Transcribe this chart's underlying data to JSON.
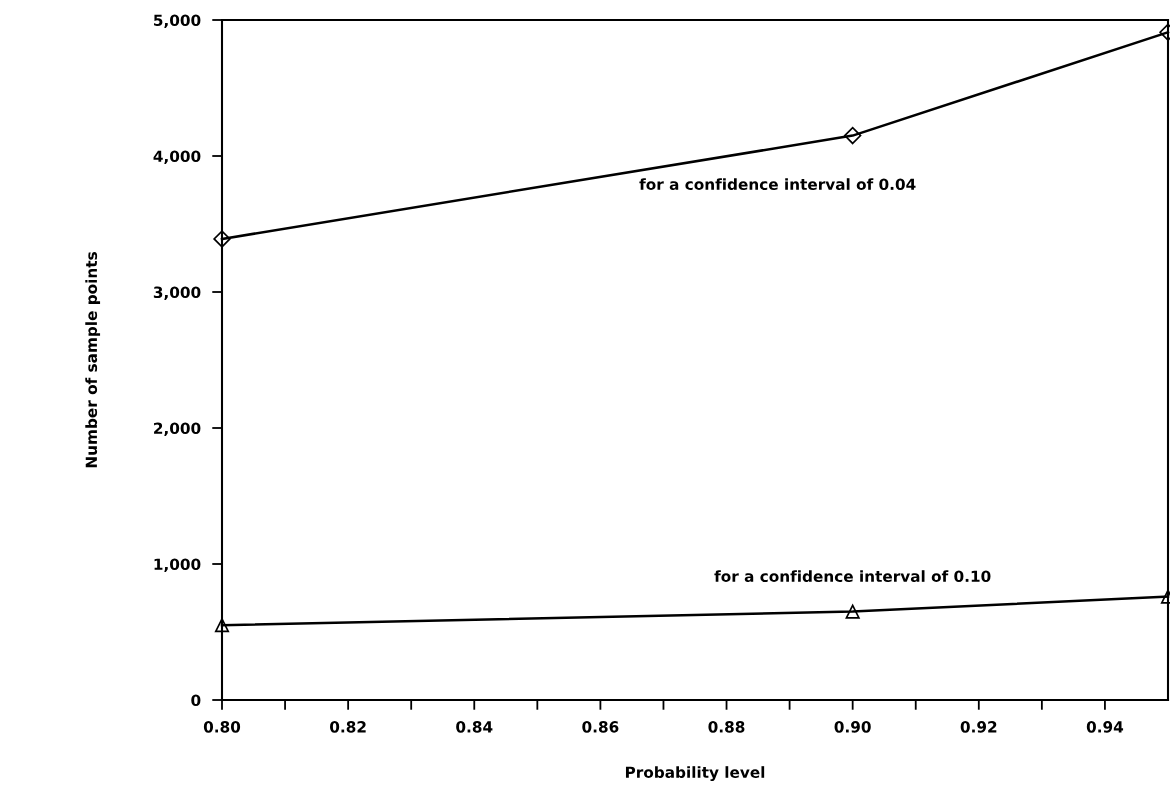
{
  "chart_data": {
    "type": "line",
    "xlabel": "Probability level",
    "ylabel": "Number of sample points",
    "x": [
      0.8,
      0.9,
      0.95
    ],
    "series": [
      {
        "name": "for a confidence interval of 0.04",
        "color": "#000000",
        "marker": "diamond",
        "values": [
          3390,
          4150,
          4910
        ]
      },
      {
        "name": "for a confidence interval of 0.10",
        "color": "#000000",
        "marker": "triangle",
        "values": [
          550,
          650,
          760
        ]
      }
    ],
    "xlim": [
      0.8,
      0.95
    ],
    "xticks": [
      {
        "value": 0.8,
        "label": "0.80"
      },
      {
        "value": 0.81,
        "label": null
      },
      {
        "value": 0.82,
        "label": "0.82"
      },
      {
        "value": 0.83,
        "label": null
      },
      {
        "value": 0.84,
        "label": "0.84"
      },
      {
        "value": 0.85,
        "label": null
      },
      {
        "value": 0.86,
        "label": "0.86"
      },
      {
        "value": 0.87,
        "label": null
      },
      {
        "value": 0.88,
        "label": "0.88"
      },
      {
        "value": 0.89,
        "label": null
      },
      {
        "value": 0.9,
        "label": "0.90"
      },
      {
        "value": 0.91,
        "label": null
      },
      {
        "value": 0.92,
        "label": "0.92"
      },
      {
        "value": 0.93,
        "label": null
      },
      {
        "value": 0.94,
        "label": "0.94"
      }
    ],
    "ylim": [
      0,
      5000
    ],
    "yticks": [
      0,
      {
        "value": 1000,
        "label": "1,000"
      },
      {
        "value": 2000,
        "label": "2,000"
      },
      {
        "value": 3000,
        "label": "3,000"
      },
      {
        "value": 4000,
        "label": "4,000"
      },
      {
        "value": 5000,
        "label": "5,000"
      }
    ],
    "grid": false,
    "legend": false
  }
}
